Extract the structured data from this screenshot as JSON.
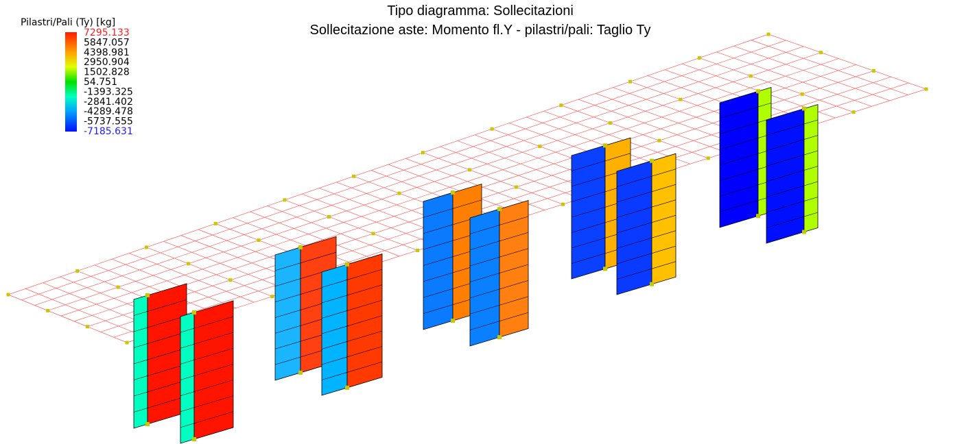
{
  "header": {
    "title": "Tipo diagramma: Sollecitazioni",
    "subtitle": "Sollecitazione aste: Momento fl.Y - pilastri/pali: Taglio Ty"
  },
  "legend": {
    "title": "Pilastri/Pali (Ty) [kg]",
    "ticks": [
      7295.133,
      5847.057,
      4398.981,
      2950.904,
      1502.828,
      54.751,
      -1393.325,
      -2841.402,
      -4289.478,
      -5737.555,
      -7185.631
    ]
  }
}
